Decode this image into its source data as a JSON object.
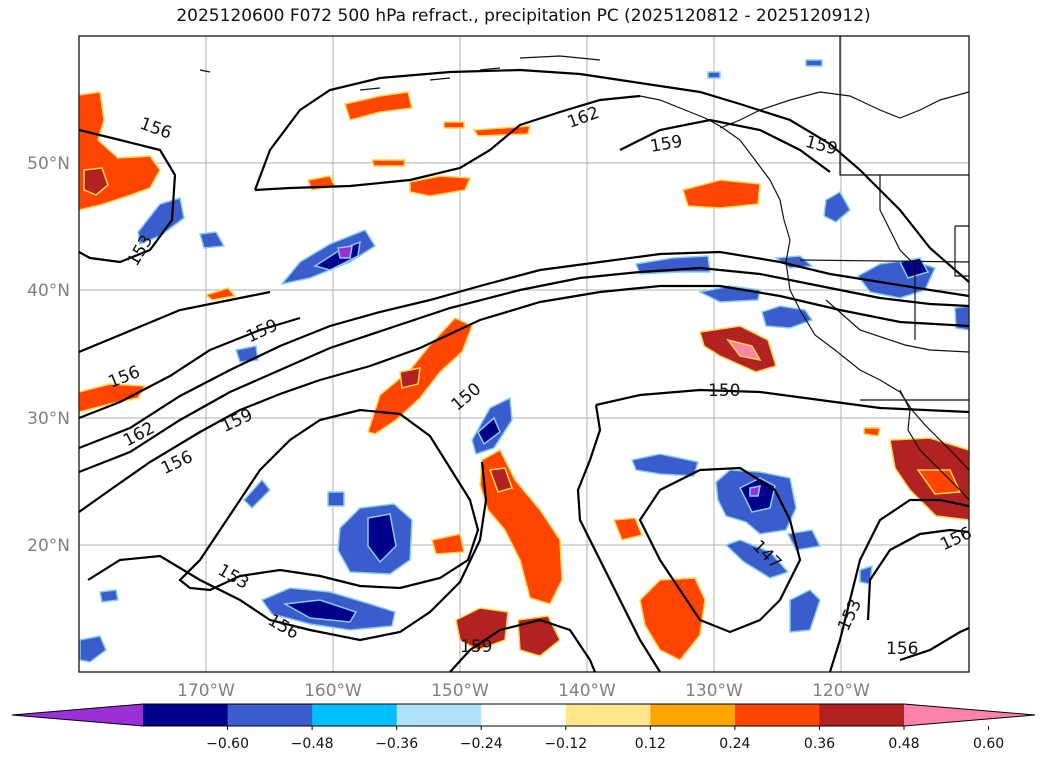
{
  "title": "2025120600 F072 500 hPa refract., precipitation PC (2025120812 - 2025120912)",
  "map": {
    "lat_labels": [
      "50°N",
      "40°N",
      "30°N",
      "20°N"
    ],
    "lon_labels": [
      "170°W",
      "160°W",
      "150°W",
      "140°W",
      "130°W",
      "120°W"
    ]
  },
  "contour_labels": [
    "156",
    "153",
    "162",
    "159",
    "159",
    "159",
    "156",
    "162",
    "159",
    "156",
    "150",
    "150",
    "153",
    "156",
    "159",
    "147",
    "153",
    "156",
    "156"
  ],
  "colorbar": {
    "tick_labels": [
      "−0.60",
      "−0.48",
      "−0.36",
      "−0.24",
      "−0.12",
      "0.12",
      "0.24",
      "0.36",
      "0.48",
      "0.60"
    ],
    "colors": [
      "#9b30d9",
      "#00008b",
      "#3a5ccc",
      "#00bfff",
      "#b0e0fa",
      "#ffffff",
      "#ffe68c",
      "#ffa500",
      "#ff4500",
      "#b22222",
      "#ff82ab"
    ]
  }
}
